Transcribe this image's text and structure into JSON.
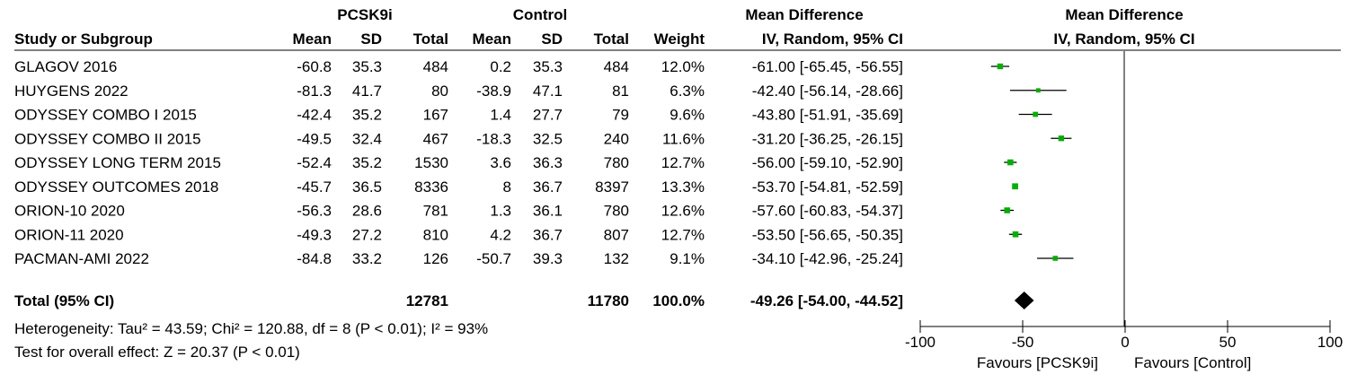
{
  "header": {
    "group1": "PCSK9i",
    "group2": "Control",
    "effect_title": "Mean Difference",
    "plot_title": "Mean Difference",
    "method": "IV, Random, 95% CI",
    "plot_method": "IV, Random, 95% CI",
    "columns": {
      "study": "Study or Subgroup",
      "mean1": "Mean",
      "sd1": "SD",
      "total1": "Total",
      "mean2": "Mean",
      "sd2": "SD",
      "total2": "Total",
      "weight": "Weight"
    }
  },
  "studies": [
    {
      "name": "GLAGOV 2016",
      "mean1": "-60.8",
      "sd1": "35.3",
      "n1": "484",
      "mean2": "0.2",
      "sd2": "35.3",
      "n2": "484",
      "weight": "12.0%",
      "ci_text": "-61.00 [-65.45, -56.55]"
    },
    {
      "name": "HUYGENS 2022",
      "mean1": "-81.3",
      "sd1": "41.7",
      "n1": "80",
      "mean2": "-38.9",
      "sd2": "47.1",
      "n2": "81",
      "weight": "6.3%",
      "ci_text": "-42.40 [-56.14, -28.66]"
    },
    {
      "name": "ODYSSEY COMBO I 2015",
      "mean1": "-42.4",
      "sd1": "35.2",
      "n1": "167",
      "mean2": "1.4",
      "sd2": "27.7",
      "n2": "79",
      "weight": "9.6%",
      "ci_text": "-43.80 [-51.91, -35.69]"
    },
    {
      "name": "ODYSSEY COMBO II 2015",
      "mean1": "-49.5",
      "sd1": "32.4",
      "n1": "467",
      "mean2": "-18.3",
      "sd2": "32.5",
      "n2": "240",
      "weight": "11.6%",
      "ci_text": "-31.20 [-36.25, -26.15]"
    },
    {
      "name": "ODYSSEY LONG TERM 2015",
      "mean1": "-52.4",
      "sd1": "35.2",
      "n1": "1530",
      "mean2": "3.6",
      "sd2": "36.3",
      "n2": "780",
      "weight": "12.7%",
      "ci_text": "-56.00 [-59.10, -52.90]"
    },
    {
      "name": "ODYSSEY OUTCOMES 2018",
      "mean1": "-45.7",
      "sd1": "36.5",
      "n1": "8336",
      "mean2": "8",
      "sd2": "36.7",
      "n2": "8397",
      "weight": "13.3%",
      "ci_text": "-53.70 [-54.81, -52.59]"
    },
    {
      "name": "ORION-10 2020",
      "mean1": "-56.3",
      "sd1": "28.6",
      "n1": "781",
      "mean2": "1.3",
      "sd2": "36.1",
      "n2": "780",
      "weight": "12.6%",
      "ci_text": "-57.60 [-60.83, -54.37]"
    },
    {
      "name": "ORION-11 2020",
      "mean1": "-49.3",
      "sd1": "27.2",
      "n1": "810",
      "mean2": "4.2",
      "sd2": "36.7",
      "n2": "807",
      "weight": "12.7%",
      "ci_text": "-53.50 [-56.65, -50.35]"
    },
    {
      "name": "PACMAN-AMI 2022",
      "mean1": "-84.8",
      "sd1": "33.2",
      "n1": "126",
      "mean2": "-50.7",
      "sd2": "39.3",
      "n2": "132",
      "weight": "9.1%",
      "ci_text": "-34.10 [-42.96, -25.24]"
    }
  ],
  "total": {
    "label": "Total (95% CI)",
    "n1": "12781",
    "n2": "11780",
    "weight": "100.0%",
    "ci_text": "-49.26 [-54.00, -44.52]"
  },
  "heterogeneity_text": "Heterogeneity: Tau² = 43.59; Chi² = 120.88, df = 8 (P < 0.01); I² = 93%",
  "overall_effect_text": "Test for overall effect: Z = 20.37 (P < 0.01)",
  "colors": {
    "marker": "#00b000",
    "line": "#000000",
    "diamond": "#000000"
  },
  "chart_data": {
    "type": "forest",
    "xlim": [
      -100,
      100
    ],
    "ticks": [
      -100,
      -50,
      0,
      50,
      100
    ],
    "tick_labels": [
      "-100",
      "-50",
      "0",
      "50",
      "100"
    ],
    "favours_left": "Favours [PCSK9i]",
    "favours_right": "Favours [Control]",
    "estimates": [
      {
        "study": "GLAGOV 2016",
        "md": -61.0,
        "lo": -65.45,
        "hi": -56.55,
        "weight": 12.0
      },
      {
        "study": "HUYGENS 2022",
        "md": -42.4,
        "lo": -56.14,
        "hi": -28.66,
        "weight": 6.3
      },
      {
        "study": "ODYSSEY COMBO I 2015",
        "md": -43.8,
        "lo": -51.91,
        "hi": -35.69,
        "weight": 9.6
      },
      {
        "study": "ODYSSEY COMBO II 2015",
        "md": -31.2,
        "lo": -36.25,
        "hi": -26.15,
        "weight": 11.6
      },
      {
        "study": "ODYSSEY LONG TERM 2015",
        "md": -56.0,
        "lo": -59.1,
        "hi": -52.9,
        "weight": 12.7
      },
      {
        "study": "ODYSSEY OUTCOMES 2018",
        "md": -53.7,
        "lo": -54.81,
        "hi": -52.59,
        "weight": 13.3
      },
      {
        "study": "ORION-10 2020",
        "md": -57.6,
        "lo": -60.83,
        "hi": -54.37,
        "weight": 12.6
      },
      {
        "study": "ORION-11 2020",
        "md": -53.5,
        "lo": -56.65,
        "hi": -50.35,
        "weight": 12.7
      },
      {
        "study": "PACMAN-AMI 2022",
        "md": -34.1,
        "lo": -42.96,
        "hi": -25.24,
        "weight": 9.1
      }
    ],
    "pooled": {
      "md": -49.26,
      "lo": -54.0,
      "hi": -44.52
    }
  }
}
